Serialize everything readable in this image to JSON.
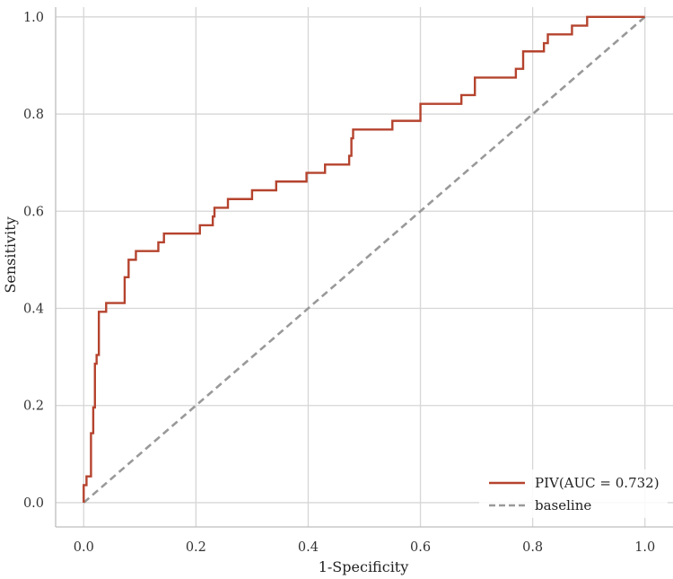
{
  "chart_data": {
    "type": "line",
    "xlabel": "1-Specificity",
    "ylabel": "Sensitivity",
    "xlim": [
      -0.05,
      1.05
    ],
    "ylim": [
      -0.05,
      1.02
    ],
    "x_ticks": [
      "0.0",
      "0.2",
      "0.4",
      "0.6",
      "0.8",
      "1.0"
    ],
    "y_ticks": [
      "0.0",
      "0.2",
      "0.4",
      "0.6",
      "0.8",
      "1.0"
    ],
    "grid": true,
    "legend_position": "bottom-right",
    "series": [
      {
        "name": "PIV(AUC = 0.732)",
        "color": "#b5432e",
        "style": "step",
        "points": [
          [
            0.0,
            0.0
          ],
          [
            0.0,
            0.036
          ],
          [
            0.005,
            0.036
          ],
          [
            0.005,
            0.054
          ],
          [
            0.013,
            0.054
          ],
          [
            0.013,
            0.143
          ],
          [
            0.017,
            0.143
          ],
          [
            0.017,
            0.196
          ],
          [
            0.02,
            0.196
          ],
          [
            0.02,
            0.286
          ],
          [
            0.023,
            0.286
          ],
          [
            0.023,
            0.304
          ],
          [
            0.027,
            0.304
          ],
          [
            0.027,
            0.393
          ],
          [
            0.04,
            0.393
          ],
          [
            0.04,
            0.411
          ],
          [
            0.073,
            0.411
          ],
          [
            0.073,
            0.464
          ],
          [
            0.08,
            0.464
          ],
          [
            0.08,
            0.5
          ],
          [
            0.093,
            0.5
          ],
          [
            0.093,
            0.518
          ],
          [
            0.133,
            0.518
          ],
          [
            0.133,
            0.536
          ],
          [
            0.143,
            0.536
          ],
          [
            0.143,
            0.554
          ],
          [
            0.207,
            0.554
          ],
          [
            0.207,
            0.571
          ],
          [
            0.23,
            0.571
          ],
          [
            0.23,
            0.589
          ],
          [
            0.233,
            0.589
          ],
          [
            0.233,
            0.607
          ],
          [
            0.257,
            0.607
          ],
          [
            0.257,
            0.625
          ],
          [
            0.3,
            0.625
          ],
          [
            0.3,
            0.643
          ],
          [
            0.343,
            0.643
          ],
          [
            0.343,
            0.661
          ],
          [
            0.397,
            0.661
          ],
          [
            0.397,
            0.679
          ],
          [
            0.43,
            0.679
          ],
          [
            0.43,
            0.696
          ],
          [
            0.473,
            0.696
          ],
          [
            0.473,
            0.714
          ],
          [
            0.477,
            0.714
          ],
          [
            0.477,
            0.75
          ],
          [
            0.48,
            0.75
          ],
          [
            0.48,
            0.768
          ],
          [
            0.55,
            0.768
          ],
          [
            0.55,
            0.786
          ],
          [
            0.6,
            0.786
          ],
          [
            0.6,
            0.821
          ],
          [
            0.673,
            0.821
          ],
          [
            0.673,
            0.839
          ],
          [
            0.697,
            0.839
          ],
          [
            0.697,
            0.875
          ],
          [
            0.77,
            0.875
          ],
          [
            0.77,
            0.893
          ],
          [
            0.783,
            0.893
          ],
          [
            0.783,
            0.929
          ],
          [
            0.82,
            0.929
          ],
          [
            0.82,
            0.946
          ],
          [
            0.827,
            0.946
          ],
          [
            0.827,
            0.964
          ],
          [
            0.87,
            0.964
          ],
          [
            0.87,
            0.982
          ],
          [
            0.897,
            0.982
          ],
          [
            0.897,
            1.0
          ],
          [
            1.0,
            1.0
          ]
        ]
      },
      {
        "name": "baseline",
        "color": "#999999",
        "style": "dashed",
        "points": [
          [
            0.0,
            0.0
          ],
          [
            1.0,
            1.0
          ]
        ]
      }
    ]
  }
}
